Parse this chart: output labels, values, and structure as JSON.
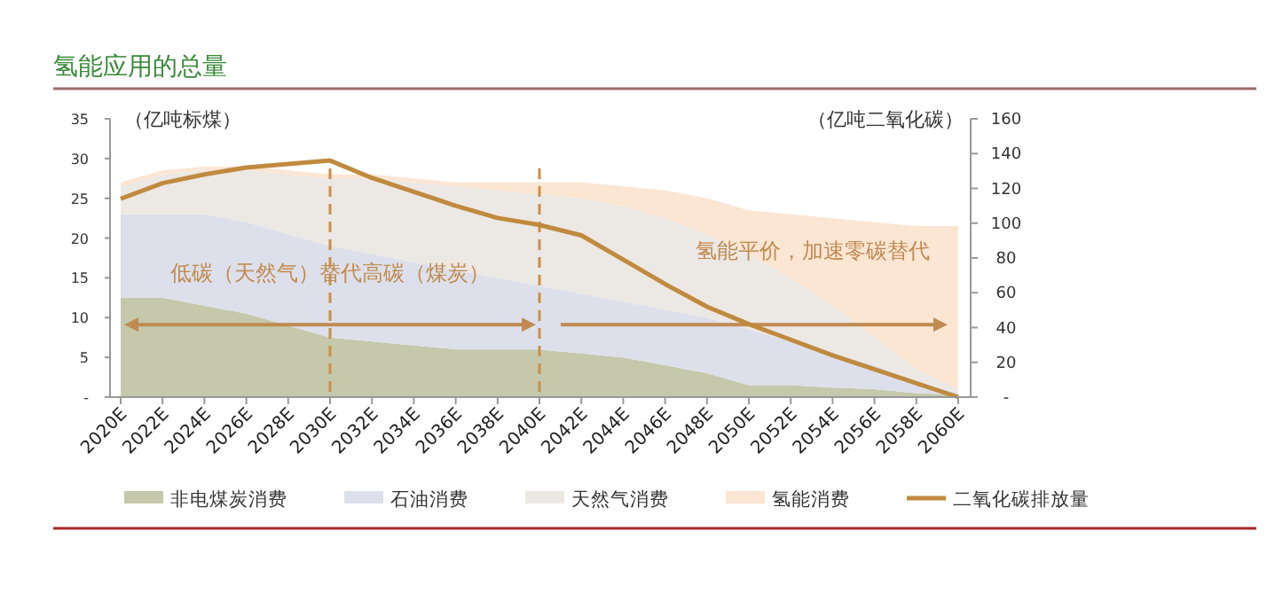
{
  "chart_data": {
    "type": "area",
    "title": "氢能应用的总量",
    "stacked": true,
    "categories": [
      "2020E",
      "2022E",
      "2024E",
      "2026E",
      "2028E",
      "2030E",
      "2032E",
      "2034E",
      "2036E",
      "2038E",
      "2040E",
      "2042E",
      "2044E",
      "2046E",
      "2048E",
      "2050E",
      "2052E",
      "2054E",
      "2056E",
      "2058E",
      "2060E"
    ],
    "series": [
      {
        "name": "非电煤炭消费",
        "color": "#c5c8ab",
        "values": [
          12.5,
          12.5,
          11.5,
          10.5,
          9,
          7.5,
          7,
          6.5,
          6,
          6,
          6,
          5.5,
          5,
          4,
          3,
          1.5,
          1.5,
          1.2,
          1,
          0.5,
          0.3
        ]
      },
      {
        "name": "石油消费",
        "color": "#dde0ea",
        "values": [
          10.5,
          10.5,
          11.5,
          11.5,
          11.5,
          11.5,
          11,
          10.5,
          10,
          9,
          8,
          7.5,
          7,
          7,
          7,
          7,
          5.5,
          4.3,
          3,
          1.5,
          0.2
        ]
      },
      {
        "name": "天然气消费",
        "color": "#ece8e4",
        "values": [
          3.5,
          5,
          5.5,
          6.5,
          7.5,
          8.5,
          9.5,
          10,
          10.5,
          11,
          11.5,
          12,
          12,
          11.5,
          10.5,
          9.5,
          8,
          6,
          3.5,
          1.5,
          0.5
        ]
      },
      {
        "name": "氢能消费",
        "color": "#fbe5d3",
        "values": [
          0.5,
          0.5,
          0.5,
          0.5,
          0.5,
          0.5,
          0.5,
          0.5,
          0.5,
          1,
          1.5,
          2,
          2.5,
          3.5,
          4.5,
          5.5,
          8,
          11,
          14.5,
          18,
          20.5
        ]
      },
      {
        "name": "二氧化碳排放量",
        "color": "#c08a3e",
        "type": "line",
        "axis": "y2",
        "values": [
          114,
          123,
          128,
          132,
          134,
          136,
          126,
          118,
          110,
          103,
          99,
          93,
          79,
          65,
          52,
          42,
          33,
          24,
          16,
          8,
          0
        ]
      }
    ],
    "ylabel": "（亿吨标煤）",
    "y2label": "（亿吨二氧化碳）",
    "ylim": [
      0,
      35
    ],
    "yticks": [
      {
        "value": 0,
        "label": "-"
      },
      5,
      10,
      15,
      20,
      25,
      30,
      35
    ],
    "y2lim": [
      0,
      160
    ],
    "y2ticks": [
      {
        "value": 0,
        "label": "-"
      },
      20,
      40,
      60,
      80,
      100,
      120,
      140,
      160
    ],
    "ref_lines": [
      {
        "axis": "x",
        "value": "2030E",
        "color": "#c8904a",
        "line_style": "dashed"
      },
      {
        "axis": "x",
        "value": "2040E",
        "color": "#c8904a",
        "line_style": "dashed"
      }
    ],
    "annotations": [
      "低碳（天然气）替代高碳（煤炭）",
      "氢能平价，加速零碳替代"
    ],
    "legend": "bottom"
  }
}
